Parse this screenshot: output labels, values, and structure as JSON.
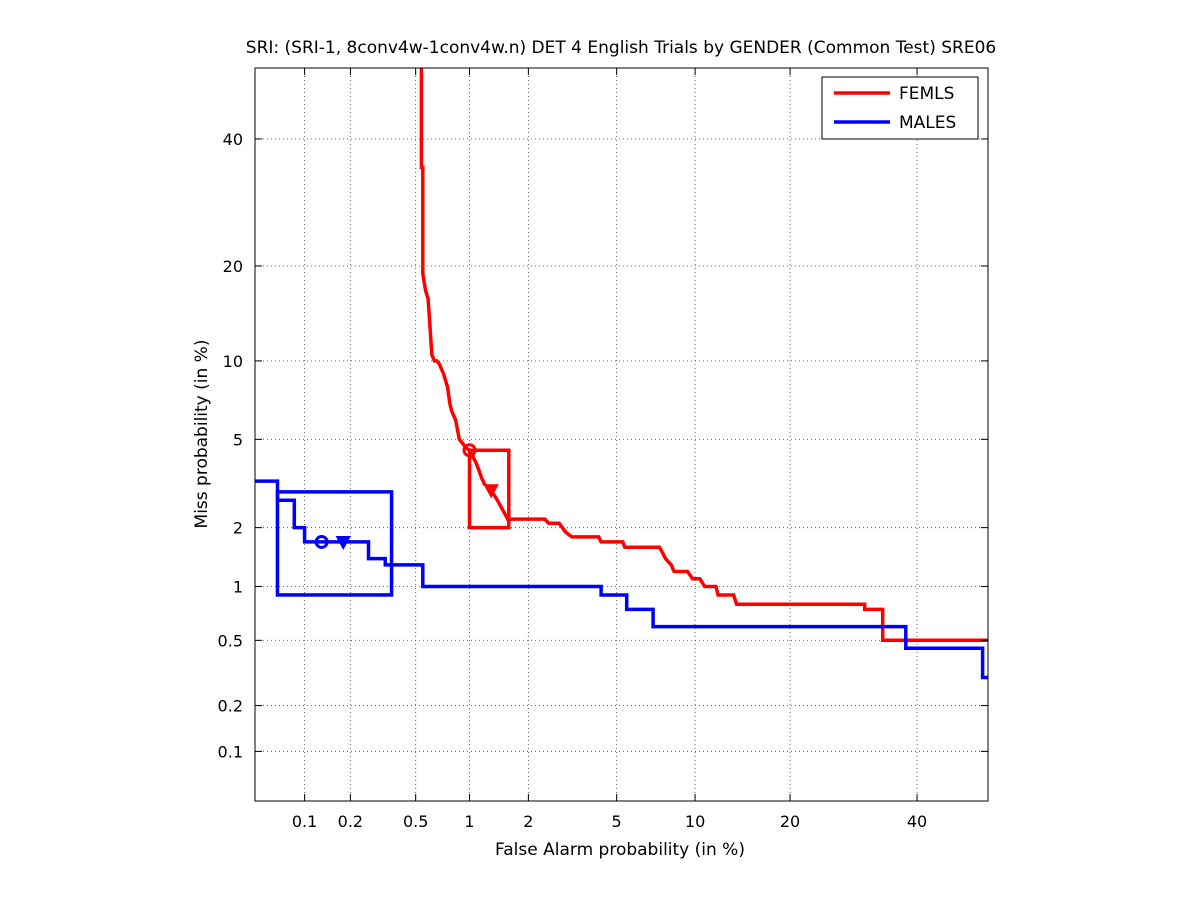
{
  "chart_data": {
    "type": "line",
    "title": "SRI: (SRI-1, 8conv4w-1conv4w.n) DET 4 English Trials by GENDER (Common Test) SRE06",
    "xlabel": "False Alarm probability (in %)",
    "ylabel": "Miss probability (in %)",
    "scale": "normal-deviate (probit)",
    "xlim": [
      0.045,
      53
    ],
    "ylim": [
      0.045,
      53
    ],
    "x_ticks": [
      0.1,
      0.2,
      0.5,
      1,
      2,
      5,
      10,
      20,
      40
    ],
    "y_ticks": [
      0.1,
      0.2,
      0.5,
      1,
      2,
      5,
      10,
      20,
      40
    ],
    "x_tick_labels": [
      "0.1",
      "0.2",
      "0.5",
      "1",
      "2",
      "5",
      "10",
      "20",
      "40"
    ],
    "y_tick_labels": [
      "0.1",
      "0.2",
      "0.5",
      "1",
      "2",
      "5",
      "10",
      "20",
      "40"
    ],
    "grid": true,
    "legend_position": "top-right",
    "series": [
      {
        "name": "FEMLS",
        "color": "#ff0000",
        "points": [
          [
            0.54,
            53
          ],
          [
            0.54,
            35
          ],
          [
            0.55,
            35
          ],
          [
            0.55,
            19
          ],
          [
            0.57,
            17
          ],
          [
            0.59,
            16
          ],
          [
            0.6,
            14
          ],
          [
            0.61,
            12
          ],
          [
            0.62,
            10.5
          ],
          [
            0.64,
            10
          ],
          [
            0.66,
            10
          ],
          [
            0.68,
            9.8
          ],
          [
            0.72,
            9
          ],
          [
            0.76,
            8
          ],
          [
            0.78,
            7
          ],
          [
            0.8,
            6.5
          ],
          [
            0.84,
            6
          ],
          [
            0.86,
            5.5
          ],
          [
            0.88,
            5
          ],
          [
            0.92,
            4.8
          ],
          [
            0.96,
            4.6
          ],
          [
            1.0,
            4.5
          ],
          [
            1.03,
            4.3
          ],
          [
            1.08,
            4
          ],
          [
            1.12,
            3.7
          ],
          [
            1.16,
            3.4
          ],
          [
            1.2,
            3.2
          ],
          [
            1.3,
            3
          ],
          [
            1.4,
            2.7
          ],
          [
            1.5,
            2.4
          ],
          [
            1.58,
            2.2
          ],
          [
            2.4,
            2.2
          ],
          [
            2.5,
            2.1
          ],
          [
            2.8,
            2.1
          ],
          [
            3.0,
            1.9
          ],
          [
            3.2,
            1.8
          ],
          [
            4.2,
            1.8
          ],
          [
            4.3,
            1.7
          ],
          [
            5.3,
            1.7
          ],
          [
            5.4,
            1.6
          ],
          [
            7.4,
            1.6
          ],
          [
            7.6,
            1.5
          ],
          [
            7.8,
            1.4
          ],
          [
            8.2,
            1.3
          ],
          [
            8.4,
            1.2
          ],
          [
            9.4,
            1.2
          ],
          [
            9.8,
            1.1
          ],
          [
            10.4,
            1.1
          ],
          [
            10.8,
            1.0
          ],
          [
            11.8,
            1.0
          ],
          [
            12.0,
            0.9
          ],
          [
            13.5,
            0.9
          ],
          [
            13.8,
            0.8
          ],
          [
            31,
            0.8
          ],
          [
            31,
            0.75
          ],
          [
            34,
            0.75
          ],
          [
            34,
            0.5
          ],
          [
            53,
            0.5
          ]
        ],
        "operating_points": [
          {
            "marker": "circle",
            "x": 1.0,
            "y": 4.5
          },
          {
            "marker": "triangle",
            "x": 1.3,
            "y": 3.0
          }
        ],
        "confidence_box": {
          "x_range": [
            1.0,
            1.6
          ],
          "y_range": [
            2.0,
            4.5
          ]
        }
      },
      {
        "name": "MALES",
        "color": "#0000ff",
        "points": [
          [
            0.045,
            3.3
          ],
          [
            0.065,
            3.3
          ],
          [
            0.065,
            2.7
          ],
          [
            0.085,
            2.7
          ],
          [
            0.085,
            2.0
          ],
          [
            0.1,
            2.0
          ],
          [
            0.1,
            1.7
          ],
          [
            0.26,
            1.7
          ],
          [
            0.26,
            1.4
          ],
          [
            0.33,
            1.4
          ],
          [
            0.33,
            1.3
          ],
          [
            0.55,
            1.3
          ],
          [
            0.55,
            1.0
          ],
          [
            4.3,
            1.0
          ],
          [
            4.3,
            0.9
          ],
          [
            5.5,
            0.9
          ],
          [
            5.5,
            0.75
          ],
          [
            7.0,
            0.75
          ],
          [
            7.0,
            0.6
          ],
          [
            38,
            0.6
          ],
          [
            38,
            0.45
          ],
          [
            52,
            0.45
          ],
          [
            52,
            0.3
          ],
          [
            53,
            0.3
          ]
        ],
        "operating_points": [
          {
            "marker": "circle",
            "x": 0.13,
            "y": 1.7
          },
          {
            "marker": "triangle",
            "x": 0.18,
            "y": 1.7
          }
        ],
        "confidence_box": {
          "x_range": [
            0.065,
            0.36
          ],
          "y_range": [
            0.9,
            2.95
          ]
        }
      }
    ]
  }
}
